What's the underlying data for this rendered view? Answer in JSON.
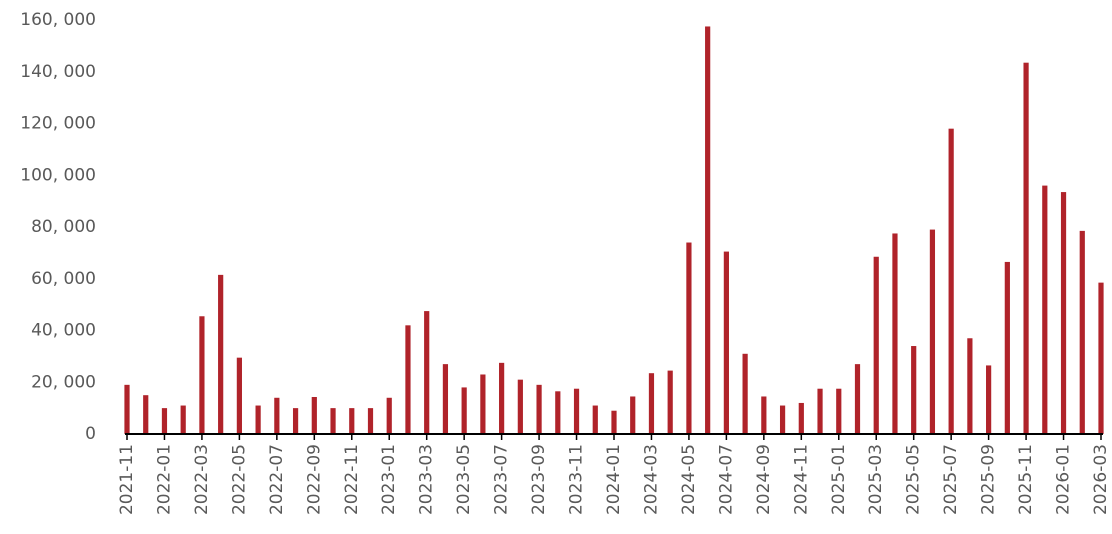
{
  "chart_data": {
    "type": "bar",
    "color": "#b0232a",
    "categories": [
      "2021-11",
      null,
      "2022-01",
      null,
      "2022-03",
      null,
      "2022-05",
      null,
      "2022-07",
      null,
      "2022-09",
      null,
      "2022-11",
      null,
      "2023-01",
      null,
      "2023-03",
      null,
      "2023-05",
      null,
      "2023-07",
      null,
      "2023-09",
      null,
      "2023-11",
      null,
      "2024-01",
      null,
      "2024-03",
      null,
      "2024-05",
      null,
      "2024-07",
      null,
      "2024-09",
      null,
      "2024-11",
      null,
      "2025-01",
      null,
      "2025-03",
      null,
      "2025-05",
      null,
      "2025-07",
      null,
      "2025-09",
      null,
      "2025-11",
      null,
      "2026-01",
      null,
      "2026-03"
    ],
    "values": [
      19000,
      15000,
      10000,
      11000,
      45500,
      61500,
      29500,
      11000,
      14000,
      10000,
      14300,
      10000,
      10000,
      10000,
      14000,
      42000,
      47500,
      27000,
      18000,
      23000,
      27500,
      21000,
      19000,
      16500,
      17500,
      11000,
      9000,
      14500,
      23500,
      24500,
      74000,
      157500,
      70500,
      31000,
      14500,
      11000,
      12000,
      17500,
      17500,
      27000,
      68500,
      77500,
      34000,
      79000,
      118000,
      37000,
      26500,
      66500,
      143500,
      96000,
      93500,
      78500,
      58500
    ],
    "ylim": [
      0,
      160000
    ],
    "yticks": [
      0,
      {
        "value": 20000,
        "label": "20, 000"
      },
      {
        "value": 40000,
        "label": "40, 000"
      },
      {
        "value": 60000,
        "label": "60, 000"
      },
      {
        "value": 80000,
        "label": "80, 000"
      },
      {
        "value": 100000,
        "label": "100, 000"
      },
      {
        "value": 120000,
        "label": "120, 000"
      },
      {
        "value": 140000,
        "label": "140, 000"
      },
      {
        "value": 160000,
        "label": "160, 000"
      }
    ],
    "grid": false
  }
}
